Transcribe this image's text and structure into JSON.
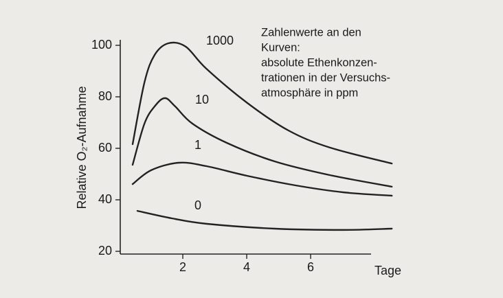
{
  "chart_data": {
    "type": "line",
    "y_label": "Relative O₂-Aufnahme",
    "x_label": "Tage",
    "annotation": [
      "Zahlenwerte an den",
      "Kurven:",
      "absolute Ethenkonzen-",
      "trationen in der Versuchs-",
      "atmosphäre in ppm"
    ],
    "xlim": [
      0,
      8.6
    ],
    "xticks": [
      2,
      4,
      6
    ],
    "ylim": [
      20,
      100
    ],
    "yticks": [
      20,
      40,
      60,
      80,
      100
    ],
    "series": [
      {
        "name": "1000",
        "color": "#222222",
        "x": [
          0.43,
          0.8,
          1.12,
          1.55,
          2.09,
          2.73,
          4.02,
          5.31,
          6.6,
          8.54
        ],
        "values": [
          61.6,
          85.6,
          96.3,
          100.8,
          99.5,
          91,
          77.6,
          66.9,
          60.3,
          54.1
        ]
      },
      {
        "name": "10",
        "color": "#222222",
        "x": [
          0.43,
          0.8,
          1.12,
          1.44,
          1.76,
          2.3,
          3.38,
          4.88,
          6.6,
          8.54
        ],
        "values": [
          53.6,
          69.6,
          76.3,
          79.5,
          76.3,
          69.6,
          62.1,
          54.9,
          49.6,
          45.1
        ]
      },
      {
        "name": "1",
        "color": "#222222",
        "x": [
          0.43,
          1.01,
          1.87,
          2.73,
          4.02,
          5.53,
          7.03,
          8.54
        ],
        "values": [
          46.1,
          51.5,
          54.4,
          53.1,
          49.3,
          45.6,
          42.9,
          41.6
        ]
      },
      {
        "name": "0",
        "color": "#222222",
        "x": [
          0.58,
          1.66,
          2.73,
          4.88,
          7.03,
          8.54
        ],
        "values": [
          35.7,
          32.8,
          30.7,
          28.8,
          28.3,
          28.8
        ]
      }
    ]
  }
}
